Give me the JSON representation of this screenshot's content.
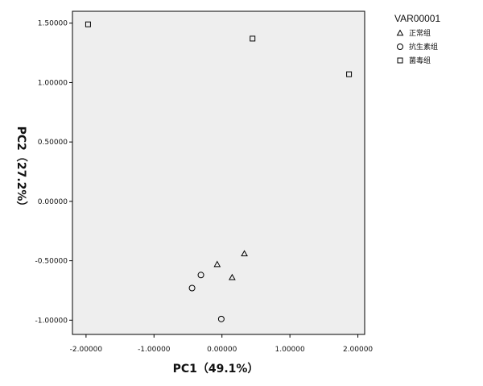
{
  "chart_data": {
    "type": "scatter",
    "xlabel": "PC1（49.1%）",
    "ylabel": "PC2（27.2%）",
    "xlim": [
      -2.2,
      2.1
    ],
    "ylim": [
      -1.12,
      1.6
    ],
    "xticks": [
      -2.0,
      -1.0,
      0.0,
      1.0,
      2.0
    ],
    "yticks": [
      -1.0,
      -0.5,
      0.0,
      0.5,
      1.0,
      1.5
    ],
    "xtick_labels": [
      "-2.00000",
      "-1.00000",
      "0.00000",
      "1.00000",
      "2.00000"
    ],
    "ytick_labels": [
      "-1.00000",
      "-0.50000",
      "0.00000",
      "0.50000",
      "1.00000",
      "1.50000"
    ],
    "grid": false,
    "plot_background": "#eeeeee",
    "legend": {
      "title": "VAR00001",
      "position": "right"
    },
    "series": [
      {
        "name": "正常组",
        "marker": "triangle",
        "points": [
          {
            "x": -0.07,
            "y": -0.53
          },
          {
            "x": 0.33,
            "y": -0.44
          },
          {
            "x": 0.15,
            "y": -0.64
          }
        ]
      },
      {
        "name": "抗生素组",
        "marker": "circle",
        "points": [
          {
            "x": -0.31,
            "y": -0.62
          },
          {
            "x": -0.44,
            "y": -0.73
          },
          {
            "x": -0.01,
            "y": -0.99
          }
        ]
      },
      {
        "name": "菌毒组",
        "marker": "square",
        "points": [
          {
            "x": -1.97,
            "y": 1.49
          },
          {
            "x": 0.45,
            "y": 1.37
          },
          {
            "x": 1.87,
            "y": 1.07
          }
        ]
      }
    ]
  }
}
